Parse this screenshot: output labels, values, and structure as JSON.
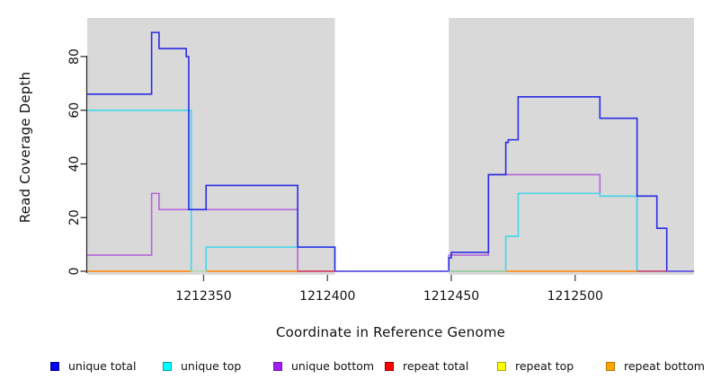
{
  "chart_data": {
    "type": "line",
    "subtype": "step",
    "title": "",
    "xlabel": "Coordinate in Reference Genome",
    "ylabel": "Read Coverage Depth",
    "xlim": [
      1212303,
      1212548
    ],
    "ylim": [
      0,
      94.4
    ],
    "x_ticks": [
      1212350,
      1212400,
      1212450,
      1212500
    ],
    "y_ticks": [
      0,
      20,
      40,
      60,
      80
    ],
    "grid": false,
    "legend_position": "bottom",
    "plot_background": "#ffffff",
    "shaded_region_color": "#d9d9d9",
    "shaded_regions": [
      {
        "from": 1212303,
        "to": 1212403
      },
      {
        "from": 1212449,
        "to": 1212548
      }
    ],
    "series": [
      {
        "name": "unique total",
        "color": "#2b2be6",
        "legend_fill": "#0000ee",
        "legend_border": "#0000a0",
        "steps": [
          [
            1212303,
            66
          ],
          [
            1212329,
            89
          ],
          [
            1212332,
            83
          ],
          [
            1212343,
            80
          ],
          [
            1212344,
            23
          ],
          [
            1212351,
            32
          ],
          [
            1212388,
            9
          ],
          [
            1212403,
            0
          ],
          [
            1212449,
            5
          ],
          [
            1212450,
            7
          ],
          [
            1212465,
            36
          ],
          [
            1212472,
            48
          ],
          [
            1212473,
            49
          ],
          [
            1212477,
            65
          ],
          [
            1212510,
            57
          ],
          [
            1212525,
            28
          ],
          [
            1212533,
            16
          ],
          [
            1212537,
            0
          ],
          [
            1212548,
            0
          ]
        ]
      },
      {
        "name": "unique top",
        "color": "#3fd8e8",
        "legend_fill": "#00ffff",
        "legend_border": "#00a0a8",
        "steps": [
          [
            1212303,
            60
          ],
          [
            1212345,
            0
          ],
          [
            1212351,
            9
          ],
          [
            1212403,
            0
          ],
          [
            1212472,
            13
          ],
          [
            1212477,
            29
          ],
          [
            1212510,
            28
          ],
          [
            1212525,
            0
          ],
          [
            1212548,
            0
          ]
        ]
      },
      {
        "name": "unique bottom",
        "color": "#b266d9",
        "legend_fill": "#a020f0",
        "legend_border": "#7018b0",
        "steps": [
          [
            1212303,
            6
          ],
          [
            1212329,
            29
          ],
          [
            1212332,
            23
          ],
          [
            1212388,
            0
          ],
          [
            1212449,
            6
          ],
          [
            1212465,
            36
          ],
          [
            1212510,
            28
          ],
          [
            1212525,
            0
          ],
          [
            1212548,
            0
          ]
        ]
      },
      {
        "name": "repeat total",
        "color": "#d9486b",
        "legend_fill": "#ff0000",
        "legend_border": "#a00000",
        "steps": [
          [
            1212303,
            0
          ],
          [
            1212548,
            0
          ]
        ]
      },
      {
        "name": "repeat top",
        "color": "#e8e83a",
        "legend_fill": "#ffff00",
        "legend_border": "#a8a800",
        "steps": [
          [
            1212303,
            0
          ],
          [
            1212548,
            0
          ]
        ]
      },
      {
        "name": "repeat bottom",
        "color": "#ff9d26",
        "legend_fill": "#ffa500",
        "legend_border": "#b87400",
        "steps": [
          [
            1212303,
            0
          ],
          [
            1212548,
            0
          ]
        ]
      }
    ],
    "baseline_segments": [
      {
        "from": 1212303,
        "to": 1212345,
        "color": "#ff9d26"
      },
      {
        "from": 1212345,
        "to": 1212351,
        "color": "#bfe8c8"
      },
      {
        "from": 1212351,
        "to": 1212388,
        "color": "#ff9d26"
      },
      {
        "from": 1212388,
        "to": 1212403,
        "color": "#d9486b"
      },
      {
        "from": 1212403,
        "to": 1212449,
        "color": "#7b64ec"
      },
      {
        "from": 1212449,
        "to": 1212472,
        "color": "#a3d6a8"
      },
      {
        "from": 1212472,
        "to": 1212525,
        "color": "#ff9d26"
      },
      {
        "from": 1212525,
        "to": 1212537,
        "color": "#d9486b"
      },
      {
        "from": 1212537,
        "to": 1212548,
        "color": "#7b64ec"
      }
    ]
  }
}
